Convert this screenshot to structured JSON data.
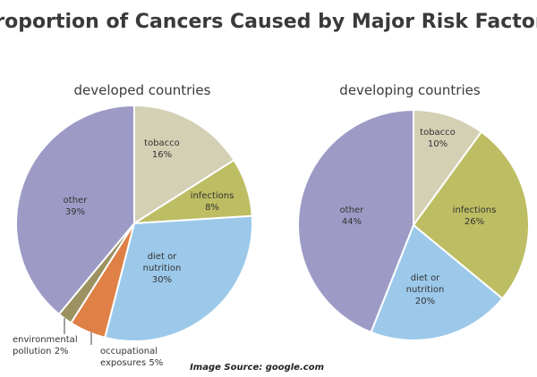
{
  "title": "Proportion of Cancers Caused by Major Risk Factors",
  "source": "Image Source: google.com",
  "chart_data": [
    {
      "type": "pie",
      "title": "developed countries",
      "slices": [
        {
          "label": [
            "tobacco",
            "16%"
          ],
          "value": 16,
          "color": "#d3d0b4"
        },
        {
          "label": [
            "infections",
            "8%"
          ],
          "value": 8,
          "color": "#bdbd63"
        },
        {
          "label": [
            "diet or",
            "nutrition",
            "30%"
          ],
          "value": 30,
          "color": "#9cc9ea"
        },
        {
          "label": [
            "occupational",
            "exposures 5%"
          ],
          "value": 5,
          "color": "#df8046"
        },
        {
          "label": [
            "environmental",
            "pollution 2%"
          ],
          "value": 2,
          "color": "#9c9160"
        },
        {
          "label": [
            "other",
            "39%"
          ],
          "value": 39,
          "color": "#9d9bc6"
        }
      ]
    },
    {
      "type": "pie",
      "title": "developing countries",
      "slices": [
        {
          "label": [
            "tobacco",
            "10%"
          ],
          "value": 10,
          "color": "#d3d0b4"
        },
        {
          "label": [
            "infections",
            "26%"
          ],
          "value": 26,
          "color": "#bdbd63"
        },
        {
          "label": [
            "diet or",
            "nutrition",
            "20%"
          ],
          "value": 20,
          "color": "#9cc9ea"
        },
        {
          "label": [
            "other",
            "44%"
          ],
          "value": 44,
          "color": "#9d9bc6"
        }
      ]
    }
  ]
}
